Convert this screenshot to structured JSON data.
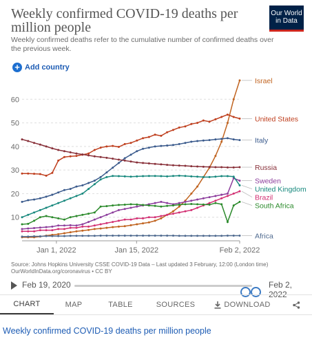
{
  "header": {
    "title": "Weekly confirmed COVID-19 deaths per million people",
    "subtitle": "Weekly confirmed deaths refer to the cumulative number of confirmed deaths over the previous week.",
    "logo_line1": "Our World",
    "logo_line2": "in Data"
  },
  "controls": {
    "add_country": "Add country"
  },
  "chart_data": {
    "type": "line",
    "title": "Weekly confirmed COVID-19 deaths per million people",
    "xlabel": "",
    "ylabel": "",
    "ylim": [
      0,
      70
    ],
    "yticks": [
      10,
      20,
      30,
      40,
      50,
      60
    ],
    "grid": true,
    "legend": "right-end labels",
    "x_start": "2021-12-26",
    "x_end": "2022-02-02",
    "xtick_labels": [
      "Jan 1, 2022",
      "Jan 15, 2022",
      "Feb 2, 2022"
    ],
    "xtick_dates": [
      "2022-01-01",
      "2022-01-15",
      "2022-02-02"
    ],
    "series": [
      {
        "name": "Israel",
        "color": "#c0631f",
        "values": [
          1.5,
          1.5,
          1.5,
          1.8,
          2.2,
          2.5,
          2.8,
          3.2,
          3.6,
          4,
          4.3,
          4.6,
          5,
          5.2,
          5.5,
          5.8,
          6,
          6.2,
          6.6,
          7,
          7.4,
          7.8,
          8.5,
          9.5,
          11,
          12.5,
          14.5,
          17,
          20,
          23,
          27,
          31,
          36,
          42,
          50,
          60,
          68
        ]
      },
      {
        "name": "United States",
        "color": "#bf3f1e",
        "values": [
          28.5,
          28.5,
          28.4,
          28.3,
          27.6,
          28.8,
          34,
          35.5,
          35.8,
          36,
          36.5,
          37,
          38.5,
          39.5,
          40,
          40.2,
          39.8,
          41,
          41.5,
          42.5,
          43.5,
          44,
          45,
          44.5,
          46,
          47,
          48,
          48.5,
          49.5,
          50,
          51,
          50.5,
          51.5,
          52.5,
          53.5,
          52.5,
          51.8
        ]
      },
      {
        "name": "Italy",
        "color": "#3a5a8c",
        "values": [
          16.5,
          17.2,
          17.5,
          18,
          18.7,
          19.5,
          20.5,
          21.5,
          22,
          23,
          23.5,
          24.5,
          25.5,
          27,
          29,
          31,
          33,
          35,
          36.5,
          38,
          39,
          39.5,
          40,
          40.2,
          40.4,
          40.6,
          41,
          41.5,
          42,
          42.3,
          42.5,
          42.7,
          43,
          43.2,
          43.5,
          43,
          42.7
        ]
      },
      {
        "name": "Russia",
        "color": "#883039",
        "values": [
          43,
          42.3,
          41.5,
          40.8,
          40,
          39.2,
          38.5,
          38,
          37.5,
          37,
          36.6,
          36.2,
          35.8,
          35.5,
          35.2,
          34.8,
          34.4,
          34,
          33.6,
          33.2,
          33,
          32.8,
          32.6,
          32.4,
          32.2,
          32,
          31.9,
          31.8,
          31.6,
          31.5,
          31.4,
          31.3,
          31.2,
          31.2,
          31.1,
          31.1,
          31.2
        ]
      },
      {
        "name": "Sweden",
        "color": "#8c3d9c",
        "values": [
          5,
          5.2,
          5.4,
          5.6,
          5.8,
          6,
          6.5,
          6.5,
          6.6,
          6.5,
          7,
          8,
          9,
          10,
          11,
          12,
          13,
          13.5,
          14,
          14.5,
          15,
          15.5,
          16,
          16.5,
          16,
          15.5,
          16,
          16.5,
          17,
          17.5,
          18,
          18.5,
          19,
          19.5,
          20,
          26.5,
          25.5
        ]
      },
      {
        "name": "United Kingdom",
        "color": "#18897e",
        "values": [
          10,
          11,
          12,
          13,
          14,
          15,
          16,
          17,
          18,
          19,
          20,
          22,
          24,
          26,
          27,
          27.5,
          27.4,
          27.3,
          27.2,
          27.3,
          27.4,
          27.5,
          27.5,
          27.4,
          27.3,
          27.5,
          27.6,
          27.5,
          27.3,
          27.2,
          27,
          27,
          27.2,
          27.4,
          27.4,
          27.2,
          23.5
        ]
      },
      {
        "name": "Brazil",
        "color": "#d22f72",
        "values": [
          4,
          4,
          4,
          4.5,
          4.5,
          4.5,
          5,
          5,
          5.5,
          5.5,
          6,
          6,
          6.5,
          7,
          7.5,
          8,
          8.5,
          9,
          9,
          9.5,
          9.5,
          10,
          10,
          10.5,
          11,
          11.5,
          12,
          12.5,
          13,
          14,
          15,
          16,
          17,
          18,
          19,
          20,
          21
        ]
      },
      {
        "name": "South Africa",
        "color": "#2b8a2b",
        "values": [
          7,
          7.2,
          8.5,
          10,
          10.5,
          10,
          9.5,
          9,
          10,
          10.5,
          11,
          11.5,
          12,
          14.5,
          14.7,
          15,
          15.2,
          15.3,
          15.5,
          15.4,
          15.2,
          15,
          14.8,
          14.5,
          14.8,
          15,
          15.3,
          15.5,
          15.6,
          15.5,
          15.4,
          15.3,
          16,
          15.5,
          8,
          15,
          16.5
        ]
      },
      {
        "name": "Africa",
        "color": "#4f6a8f",
        "values": [
          1.8,
          1.8,
          1.9,
          1.9,
          2,
          2,
          2,
          2,
          2.1,
          2.1,
          2.1,
          2.1,
          2.1,
          2.2,
          2.2,
          2.2,
          2.2,
          2.2,
          2.2,
          2.2,
          2.2,
          2.2,
          2.2,
          2.2,
          2.2,
          2.2,
          2.1,
          2.1,
          2.1,
          2.1,
          2.1,
          2.1,
          2.1,
          2.1,
          2.2,
          2.2,
          2.2
        ]
      }
    ]
  },
  "source": {
    "line1": "Source: Johns Hopkins University CSSE COVID-19 Data – Last updated 3 February, 12:00 (London time)",
    "line2": "OurWorldInData.org/coronavirus • CC BY"
  },
  "timeline": {
    "start": "Feb 19, 2020",
    "end": "Feb 2, 2022",
    "range_start_fraction": 0.96,
    "range_end_fraction": 1.0
  },
  "tabs": [
    {
      "label": "CHART",
      "active": true
    },
    {
      "label": "MAP"
    },
    {
      "label": "TABLE"
    },
    {
      "label": "SOURCES"
    },
    {
      "label": "DOWNLOAD",
      "icon": "download-icon"
    },
    {
      "label": "",
      "icon": "share-icon"
    }
  ],
  "caption": "Weekly confirmed COVID-19 deaths per million people"
}
